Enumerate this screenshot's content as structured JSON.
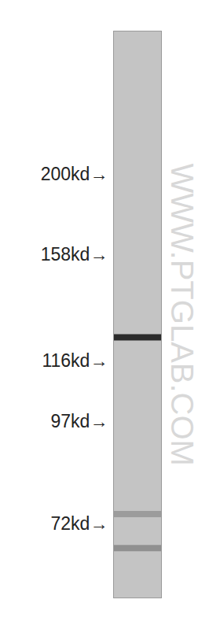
{
  "chart_data": {
    "type": "western_blot",
    "watermark": "WWW.PTGLAB.COM",
    "values": [
      124,
      74,
      67
    ],
    "colors": [
      "#2b2b2b",
      "#9c9c9c",
      "#909090"
    ],
    "ylim": [
      58,
      303
    ],
    "yticks": [
      {
        "value": 200,
        "label": "200kd→"
      },
      {
        "value": 158,
        "label": "158kd→"
      },
      {
        "value": 116,
        "label": "116kd→"
      },
      {
        "value": 97,
        "label": "97kd→"
      },
      {
        "value": 72,
        "label": "72kd→"
      }
    ],
    "log": "y",
    "tick_labels": "y",
    "grid": false
  }
}
